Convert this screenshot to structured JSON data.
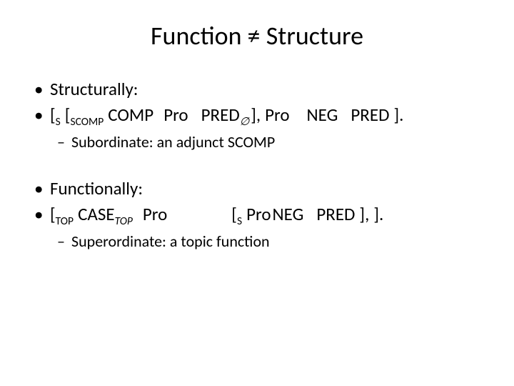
{
  "colors": {
    "text": "#000000",
    "background": "#ffffff"
  },
  "title": "Function ≠ Structure",
  "section1": {
    "heading": "Structurally:",
    "line": {
      "lbS": "[",
      "subS": "S",
      "lbSC": "[",
      "subSC": "SCOMP",
      "comp": "COMP",
      "pro1": "Pro",
      "pred0": "PRED",
      "emptySub": "∅",
      "rb1": "],",
      "pro2": "Pro",
      "neg": "NEG",
      "pred": "PRED",
      "rb2": "]."
    },
    "sub": "Subordinate: an adjunct SCOMP"
  },
  "section2": {
    "heading": "Functionally:",
    "line": {
      "lbT": "[",
      "subT": "TOP",
      "case": "CASE",
      "caseSub": "TOP",
      "pro1": "Pro",
      "lbS": "[",
      "subS": "S",
      "pro2": "Pro",
      "neg": "NEG",
      "pred": "PRED",
      "rb1": "],",
      "rb2": "]."
    },
    "sub": "Superordinate: a topic function"
  }
}
